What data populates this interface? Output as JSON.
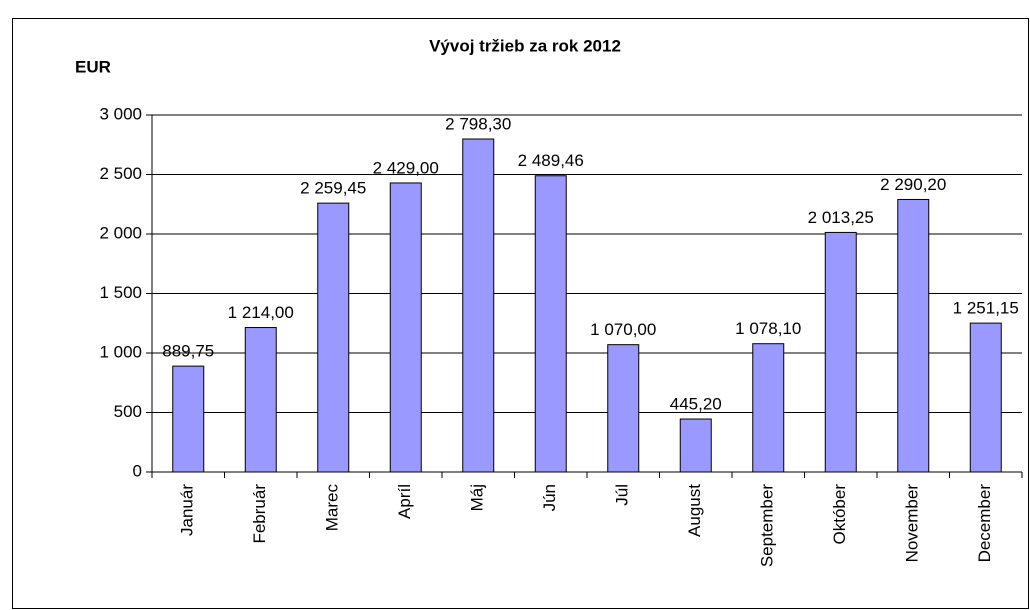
{
  "chart_data": {
    "type": "bar",
    "title": "Vývoj tržieb za rok 2012",
    "y_label": "EUR",
    "categories": [
      "Január",
      "Február",
      "Marec",
      "Apríl",
      "Máj",
      "Jún",
      "Júl",
      "August",
      "September",
      "Október",
      "November",
      "December"
    ],
    "values": [
      889.75,
      1214.0,
      2259.45,
      2429.0,
      2798.3,
      2489.46,
      1070.0,
      445.2,
      1078.1,
      2013.25,
      2290.2,
      1251.15
    ],
    "value_labels": [
      "889,75",
      "1 214,00",
      "2 259,45",
      "2 429,00",
      "2 798,30",
      "2 489,46",
      "1 070,00",
      "445,20",
      "1 078,10",
      "2 013,25",
      "2 290,20",
      "1 251,15"
    ],
    "color": "#9999ff",
    "ylim": [
      0,
      3000
    ],
    "yticks": [
      0,
      500,
      {
        "value": 1000,
        "label": "1 000"
      },
      {
        "value": 1500,
        "label": "1 500"
      },
      {
        "value": 2000,
        "label": "2 000"
      },
      {
        "value": 2500,
        "label": "2 500"
      },
      {
        "value": 3000,
        "label": "3 000"
      }
    ],
    "grid": true
  }
}
